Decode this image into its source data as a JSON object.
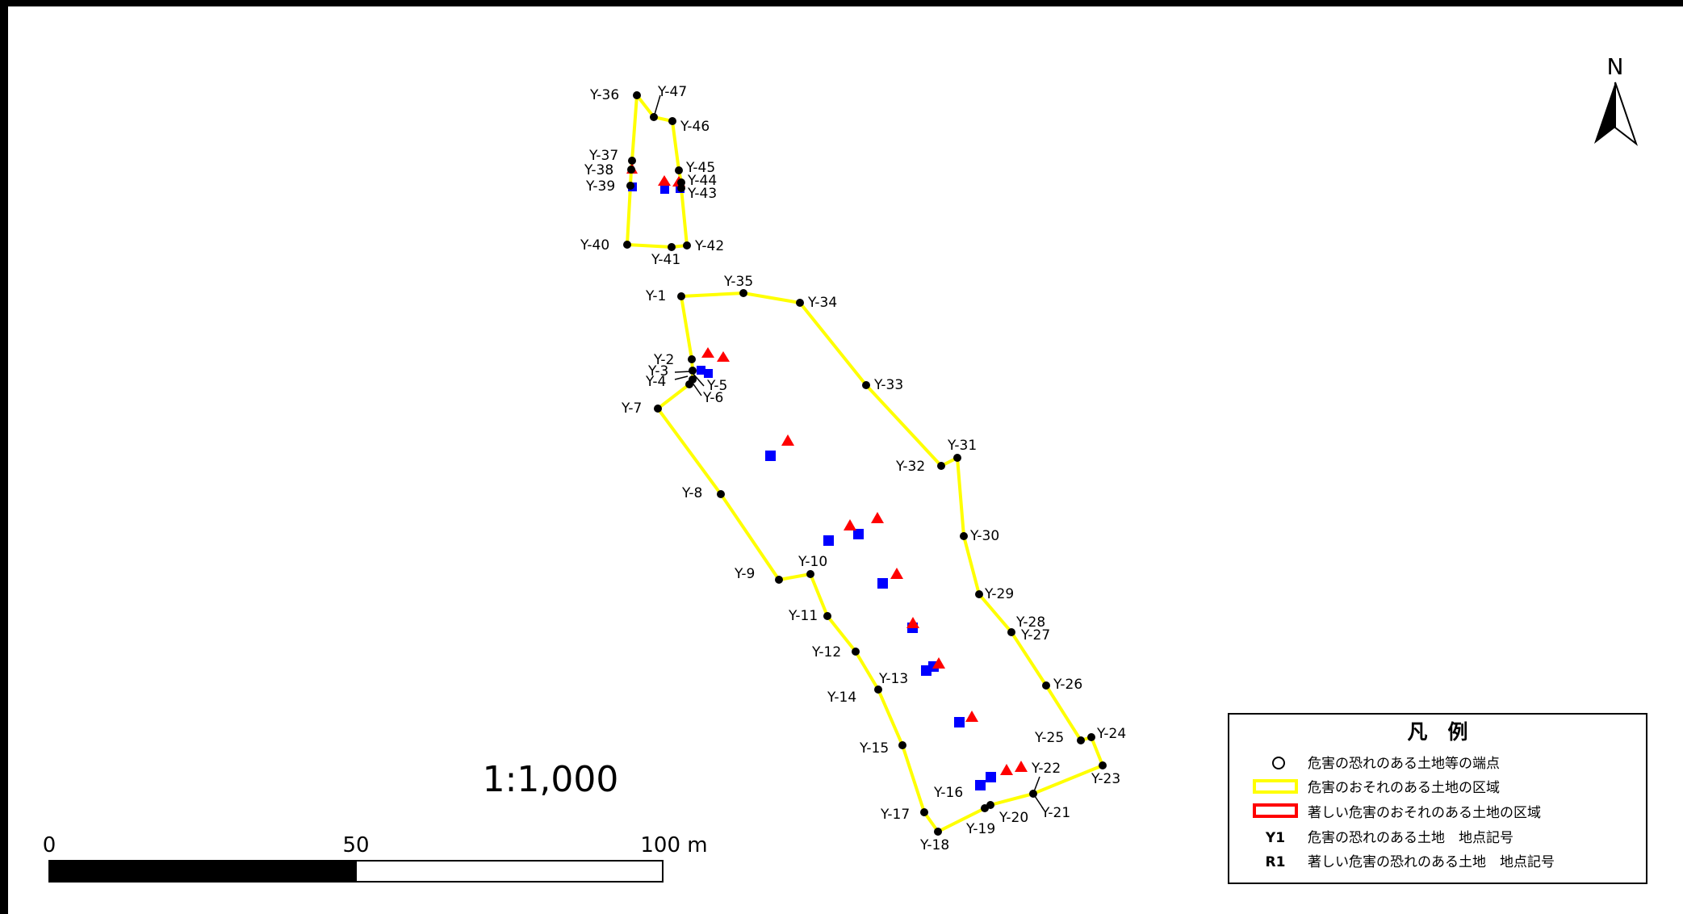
{
  "scale": {
    "ratio": "1:1,000",
    "ticks": [
      "0",
      "50",
      "100 m"
    ]
  },
  "north": {
    "label": "N"
  },
  "legend": {
    "title": "凡　例",
    "items": [
      {
        "symbol": "Y1",
        "label": "危害の恐れのある土地　地点記号"
      },
      {
        "symbol": "R1",
        "label": "著しい危害の恐れのある土地　地点記号"
      }
    ],
    "circle_label": "危害の恐れのある土地等の端点",
    "yellow_label": "危害のおそれのある土地の区域",
    "red_label": "著しい危害のおそれのある土地の区域"
  },
  "colors": {
    "boundary": "#ffff00",
    "marker_red": "#ff0000",
    "marker_blue": "#0000ff",
    "vertex": "#000000"
  },
  "icons": {
    "vertex": "filled-circle",
    "north": "north-arrow",
    "red_marker": "red-triangle",
    "blue_marker": "blue-square"
  },
  "points": [
    "Y-1",
    "Y-2",
    "Y-3",
    "Y-4",
    "Y-5",
    "Y-6",
    "Y-7",
    "Y-8",
    "Y-9",
    "Y-10",
    "Y-11",
    "Y-12",
    "Y-13",
    "Y-14",
    "Y-15",
    "Y-16",
    "Y-17",
    "Y-18",
    "Y-19",
    "Y-20",
    "Y-21",
    "Y-22",
    "Y-23",
    "Y-24",
    "Y-25",
    "Y-26",
    "Y-27",
    "Y-28",
    "Y-29",
    "Y-30",
    "Y-31",
    "Y-32",
    "Y-33",
    "Y-34",
    "Y-35",
    "Y-36",
    "Y-37",
    "Y-38",
    "Y-39",
    "Y-40",
    "Y-41",
    "Y-42",
    "Y-43",
    "Y-44",
    "Y-45",
    "Y-46",
    "Y-47"
  ]
}
